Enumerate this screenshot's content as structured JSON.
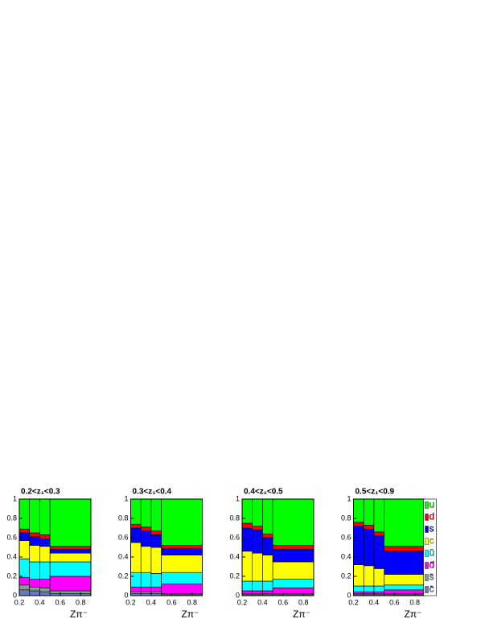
{
  "chart_data": [
    {
      "type": "stacked_histogram",
      "title": "0.2<z₁<0.3",
      "x_label": "Zπ⁻",
      "bins": [
        0.2,
        0.3,
        0.4,
        0.5,
        0.9
      ],
      "xlim": [
        0.2,
        0.9
      ],
      "ylim": [
        0,
        1
      ],
      "xticks": [
        0.2,
        0.4,
        0.6,
        0.8
      ],
      "yticks": [
        0,
        0.2,
        0.4,
        0.6,
        0.8,
        1
      ],
      "series": [
        {
          "color": "#6a78c0",
          "values": [
            0.06,
            0.05,
            0.04,
            0.02
          ]
        },
        {
          "color": "#7fa08a",
          "values": [
            0.05,
            0.04,
            0.04,
            0.03
          ]
        },
        {
          "color": "#ff00ff",
          "values": [
            0.08,
            0.08,
            0.09,
            0.15
          ]
        },
        {
          "color": "#00ffff",
          "values": [
            0.19,
            0.18,
            0.18,
            0.15
          ]
        },
        {
          "color": "#ffff00",
          "values": [
            0.19,
            0.17,
            0.16,
            0.09
          ]
        },
        {
          "color": "#0000ff",
          "values": [
            0.08,
            0.09,
            0.08,
            0.04
          ]
        },
        {
          "color": "#ff0000",
          "values": [
            0.04,
            0.04,
            0.04,
            0.03
          ]
        },
        {
          "color": "#00ff00",
          "values": [
            0.31,
            0.35,
            0.37,
            0.49
          ]
        }
      ]
    },
    {
      "type": "stacked_histogram",
      "title": "0.3<z₁<0.4",
      "x_label": "Zπ⁻",
      "bins": [
        0.2,
        0.3,
        0.4,
        0.5,
        0.9
      ],
      "xlim": [
        0.2,
        0.9
      ],
      "ylim": [
        0,
        1
      ],
      "xticks": [
        0.2,
        0.4,
        0.6,
        0.8
      ],
      "yticks": [
        0,
        0.2,
        0.4,
        0.6,
        0.8,
        1
      ],
      "series": [
        {
          "color": "#6a78c0",
          "values": [
            0.02,
            0.02,
            0.02,
            0.01
          ]
        },
        {
          "color": "#7fa08a",
          "values": [
            0.02,
            0.02,
            0.02,
            0.01
          ]
        },
        {
          "color": "#ff00ff",
          "values": [
            0.05,
            0.05,
            0.05,
            0.1
          ]
        },
        {
          "color": "#00ffff",
          "values": [
            0.15,
            0.15,
            0.14,
            0.12
          ]
        },
        {
          "color": "#ffff00",
          "values": [
            0.31,
            0.27,
            0.27,
            0.18
          ]
        },
        {
          "color": "#0000ff",
          "values": [
            0.15,
            0.16,
            0.13,
            0.07
          ]
        },
        {
          "color": "#ff0000",
          "values": [
            0.04,
            0.04,
            0.04,
            0.03
          ]
        },
        {
          "color": "#00ff00",
          "values": [
            0.26,
            0.29,
            0.33,
            0.48
          ]
        }
      ]
    },
    {
      "type": "stacked_histogram",
      "title": "0.4<z₁<0.5",
      "x_label": "Zπ⁻",
      "bins": [
        0.2,
        0.3,
        0.4,
        0.5,
        0.9
      ],
      "xlim": [
        0.2,
        0.9
      ],
      "ylim": [
        0,
        1
      ],
      "xticks": [
        0.2,
        0.4,
        0.6,
        0.8
      ],
      "yticks": [
        0,
        0.2,
        0.4,
        0.6,
        0.8,
        1
      ],
      "series": [
        {
          "color": "#6a78c0",
          "values": [
            0.01,
            0.01,
            0.01,
            0.01
          ]
        },
        {
          "color": "#7fa08a",
          "values": [
            0.01,
            0.01,
            0.01,
            0.01
          ]
        },
        {
          "color": "#ff00ff",
          "values": [
            0.03,
            0.03,
            0.03,
            0.06
          ]
        },
        {
          "color": "#00ffff",
          "values": [
            0.1,
            0.1,
            0.1,
            0.09
          ]
        },
        {
          "color": "#ffff00",
          "values": [
            0.31,
            0.29,
            0.27,
            0.18
          ]
        },
        {
          "color": "#0000ff",
          "values": [
            0.24,
            0.24,
            0.18,
            0.13
          ]
        },
        {
          "color": "#ff0000",
          "values": [
            0.05,
            0.04,
            0.04,
            0.04
          ]
        },
        {
          "color": "#00ff00",
          "values": [
            0.25,
            0.28,
            0.36,
            0.48
          ]
        }
      ]
    },
    {
      "type": "stacked_histogram",
      "title": "0.5<z₁<0.9",
      "x_label": "Zπ⁻",
      "bins": [
        0.2,
        0.3,
        0.4,
        0.5,
        0.9
      ],
      "xlim": [
        0.2,
        0.9
      ],
      "ylim": [
        0,
        1
      ],
      "xticks": [
        0.2,
        0.4,
        0.6,
        0.8
      ],
      "yticks": [
        0,
        0.2,
        0.4,
        0.6,
        0.8,
        1
      ],
      "legend": "upper right",
      "series": [
        {
          "name": "c̄",
          "color": "#6a78c0",
          "values": [
            0.01,
            0.01,
            0.01,
            0.01
          ]
        },
        {
          "name": "s̄",
          "color": "#7fa08a",
          "values": [
            0.01,
            0.01,
            0.01,
            0.01
          ]
        },
        {
          "name": "d̄",
          "color": "#ff00ff",
          "values": [
            0.02,
            0.02,
            0.02,
            0.04
          ]
        },
        {
          "name": "ū",
          "color": "#00ffff",
          "values": [
            0.06,
            0.06,
            0.06,
            0.05
          ]
        },
        {
          "name": "c",
          "color": "#ffff00",
          "values": [
            0.22,
            0.21,
            0.18,
            0.11
          ]
        },
        {
          "name": "s",
          "color": "#0000ff",
          "values": [
            0.4,
            0.38,
            0.34,
            0.24
          ]
        },
        {
          "name": "d",
          "color": "#ff0000",
          "values": [
            0.04,
            0.04,
            0.04,
            0.05
          ]
        },
        {
          "name": "u",
          "color": "#00ff00",
          "values": [
            0.24,
            0.27,
            0.34,
            0.49
          ]
        }
      ]
    }
  ]
}
